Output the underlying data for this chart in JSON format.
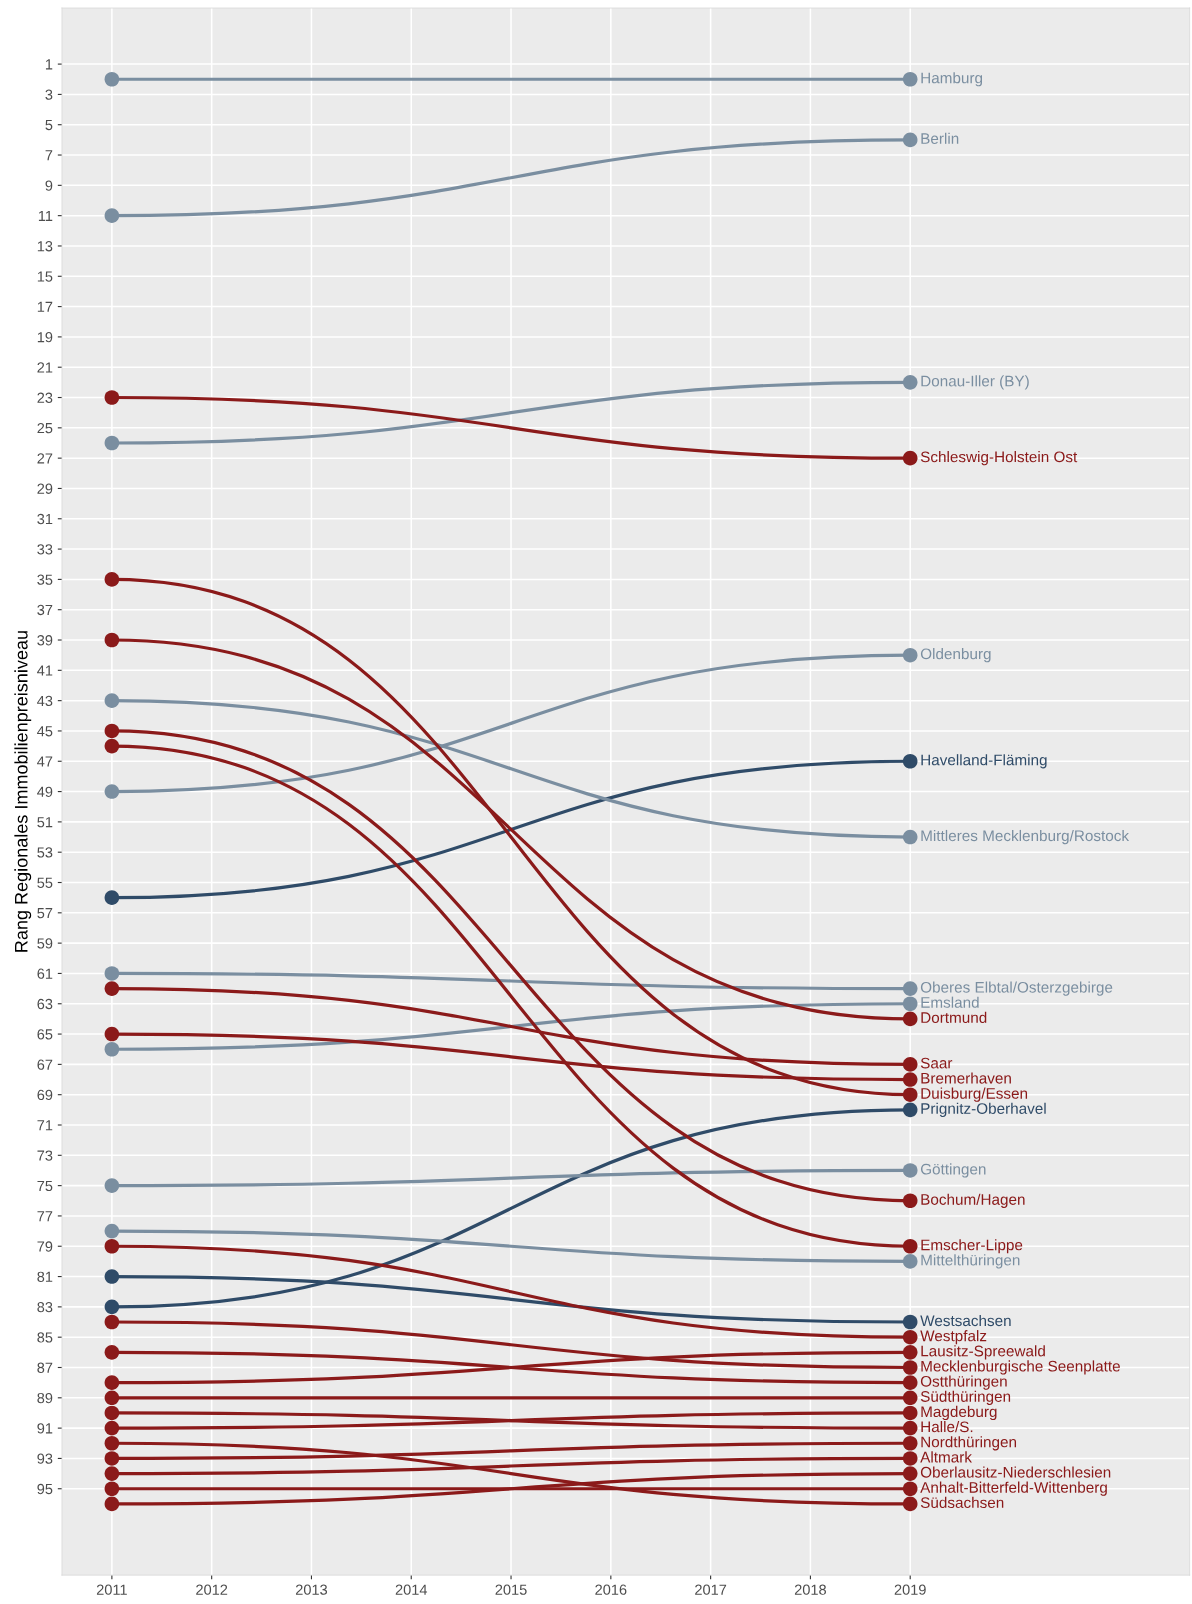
{
  "chart_data": {
    "type": "line",
    "ylabel": "Rang Regionales Immobilienpreisniveau",
    "x": [
      2011,
      2019
    ],
    "xlim": [
      2010.5,
      2021.8
    ],
    "xticks": [
      2011,
      2012,
      2013,
      2014,
      2015,
      2016,
      2017,
      2018,
      2019
    ],
    "ylim": [
      100.7,
      -2.7
    ],
    "yticks": [
      1,
      3,
      5,
      7,
      9,
      11,
      13,
      15,
      17,
      19,
      21,
      23,
      25,
      27,
      29,
      31,
      33,
      35,
      37,
      39,
      41,
      43,
      45,
      47,
      49,
      51,
      53,
      55,
      57,
      59,
      61,
      63,
      65,
      67,
      69,
      71,
      73,
      75,
      77,
      79,
      81,
      83,
      85,
      87,
      89,
      91,
      93,
      95
    ],
    "grid": true,
    "marker": "circle",
    "line_style": "solid",
    "series": [
      {
        "name": "Hamburg",
        "color": "#7a8ea0",
        "values": [
          2,
          2
        ]
      },
      {
        "name": "Berlin",
        "color": "#7a8ea0",
        "values": [
          11,
          6
        ]
      },
      {
        "name": "Donau-Iller (BY)",
        "color": "#7a8ea0",
        "values": [
          26,
          22
        ]
      },
      {
        "name": "Schleswig-Holstein Ost",
        "color": "#8b1a1a",
        "values": [
          23,
          27
        ]
      },
      {
        "name": "Oldenburg",
        "color": "#7a8ea0",
        "values": [
          49,
          40
        ]
      },
      {
        "name": "Havelland-Fläming",
        "color": "#2f4b68",
        "values": [
          56,
          47
        ]
      },
      {
        "name": "Mittleres Mecklenburg/Rostock",
        "color": "#7a8ea0",
        "values": [
          43,
          52
        ]
      },
      {
        "name": "Oberes Elbtal/Osterzgebirge",
        "color": "#7a8ea0",
        "values": [
          61,
          62
        ]
      },
      {
        "name": "Emsland",
        "color": "#7a8ea0",
        "values": [
          66,
          63
        ]
      },
      {
        "name": "Dortmund",
        "color": "#8b1a1a",
        "values": [
          39,
          64
        ]
      },
      {
        "name": "Saar",
        "color": "#8b1a1a",
        "values": [
          62,
          67
        ]
      },
      {
        "name": "Bremerhaven",
        "color": "#8b1a1a",
        "values": [
          65,
          68
        ]
      },
      {
        "name": "Duisburg/Essen",
        "color": "#8b1a1a",
        "values": [
          35,
          69
        ]
      },
      {
        "name": "Prignitz-Oberhavel",
        "color": "#2f4b68",
        "values": [
          83,
          70
        ]
      },
      {
        "name": "Göttingen",
        "color": "#7a8ea0",
        "values": [
          75,
          74
        ]
      },
      {
        "name": "Bochum/Hagen",
        "color": "#8b1a1a",
        "values": [
          45,
          76
        ]
      },
      {
        "name": "Emscher-Lippe",
        "color": "#8b1a1a",
        "values": [
          46,
          79
        ]
      },
      {
        "name": "Mittelthüringen",
        "color": "#7a8ea0",
        "values": [
          78,
          80
        ]
      },
      {
        "name": "Westsachsen",
        "color": "#2f4b68",
        "values": [
          81,
          84
        ]
      },
      {
        "name": "Westpfalz",
        "color": "#8b1a1a",
        "values": [
          79,
          85
        ]
      },
      {
        "name": "Lausitz-Spreewald",
        "color": "#8b1a1a",
        "values": [
          88,
          86
        ]
      },
      {
        "name": "Mecklenburgische Seenplatte",
        "color": "#8b1a1a",
        "values": [
          84,
          87
        ]
      },
      {
        "name": "Ostthüringen",
        "color": "#8b1a1a",
        "values": [
          86,
          88
        ]
      },
      {
        "name": "Südthüringen",
        "color": "#8b1a1a",
        "values": [
          89,
          89
        ]
      },
      {
        "name": "Magdeburg",
        "color": "#8b1a1a",
        "values": [
          91,
          90
        ]
      },
      {
        "name": "Halle/S.",
        "color": "#8b1a1a",
        "values": [
          90,
          91
        ]
      },
      {
        "name": "Nordthüringen",
        "color": "#8b1a1a",
        "values": [
          93,
          92
        ]
      },
      {
        "name": "Altmark",
        "color": "#8b1a1a",
        "values": [
          94,
          93
        ]
      },
      {
        "name": "Oberlausitz-Niederschlesien",
        "color": "#8b1a1a",
        "values": [
          96,
          94
        ]
      },
      {
        "name": "Anhalt-Bitterfeld-Wittenberg",
        "color": "#8b1a1a",
        "values": [
          95,
          95
        ]
      },
      {
        "name": "Südsachsen",
        "color": "#8b1a1a",
        "values": [
          92,
          96
        ]
      }
    ]
  }
}
